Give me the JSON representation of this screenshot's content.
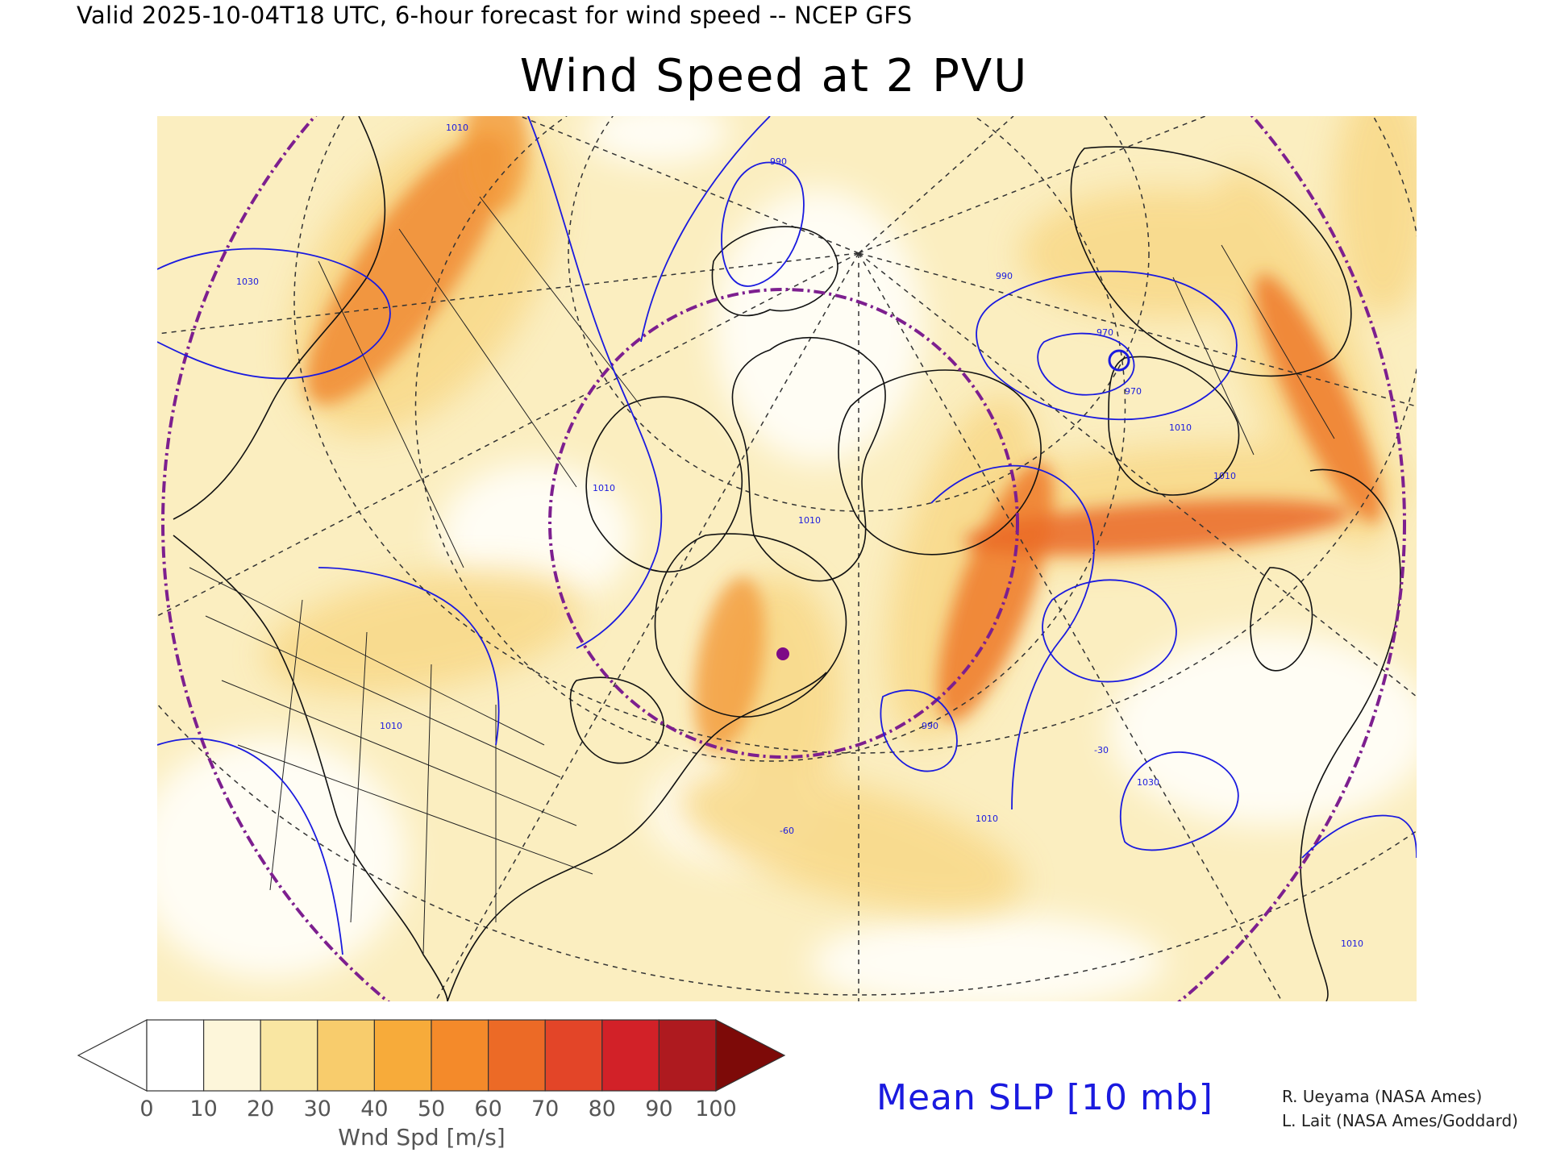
{
  "header": {
    "valid_line": "Valid 2025-10-04T18 UTC, 6-hour forecast for wind speed -- NCEP GFS",
    "title": "Wind Speed at 2 PVU"
  },
  "map": {
    "contour_labels": [
      "1010",
      "1030",
      "990",
      "970",
      "970",
      "990",
      "1010",
      "1010",
      "1010",
      "1030",
      "1010",
      "1010",
      "1010",
      "990",
      "1010"
    ],
    "meridian_labels": [
      "-60",
      "-30"
    ]
  },
  "colorbar": {
    "ticks": [
      "0",
      "10",
      "20",
      "30",
      "40",
      "50",
      "60",
      "70",
      "80",
      "90",
      "100"
    ],
    "colors": [
      "#ffffff",
      "#fdf6da",
      "#f9e6a2",
      "#f8cc6c",
      "#f7ab3a",
      "#f48a2a",
      "#ec6a26",
      "#e34528",
      "#d22128",
      "#ae1a1f",
      "#7d0a08"
    ],
    "unit_label": "Wnd Spd [m/s]"
  },
  "slp_label": "Mean SLP [10 mb]",
  "credits": [
    "R. Ueyama (NASA Ames)",
    "L. Lait (NASA Ames/Goddard)"
  ]
}
